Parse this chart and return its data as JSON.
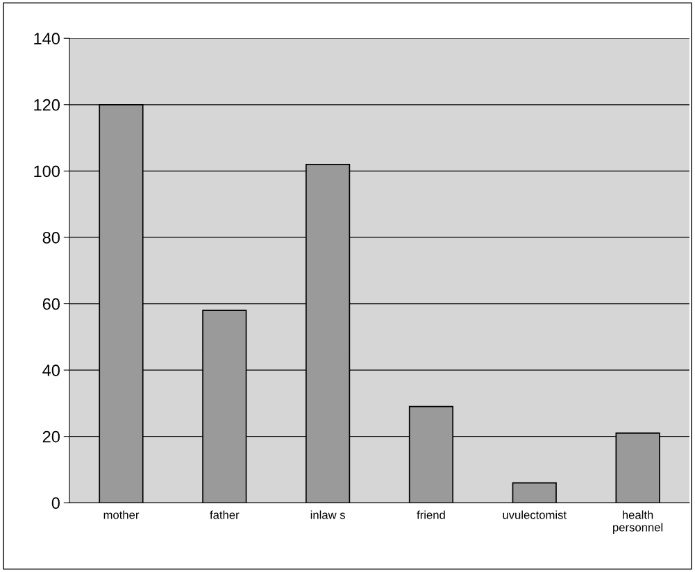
{
  "chart_data": {
    "type": "bar",
    "categories": [
      "mother",
      "father",
      "inlaw s",
      "friend",
      "uvulectomist",
      "health\npersonnel"
    ],
    "values": [
      120,
      58,
      102,
      29,
      6,
      21
    ],
    "color": "#9a9a9a",
    "ylim": [
      0,
      140
    ],
    "yticks": [
      0,
      20,
      40,
      60,
      80,
      100,
      120,
      140
    ],
    "grid": "y",
    "legend": false
  }
}
